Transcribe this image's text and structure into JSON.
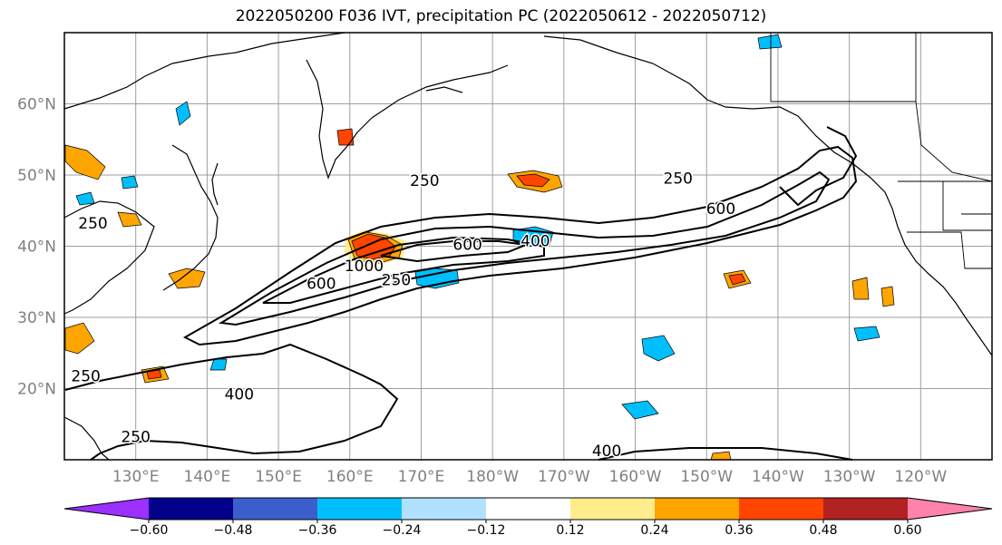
{
  "title": "2022050200 F036 IVT, precipitation PC (2022050612 - 2022050712)",
  "map": {
    "lon_range": [
      120,
      250
    ],
    "lat_range": [
      10,
      70
    ],
    "lon_ticks": [
      "130°E",
      "140°E",
      "150°E",
      "160°E",
      "170°E",
      "180°W",
      "170°W",
      "160°W",
      "150°W",
      "140°W",
      "130°W",
      "120°W"
    ],
    "lat_ticks": [
      "20°N",
      "30°N",
      "40°N",
      "50°N",
      "60°N"
    ],
    "contour_labels": [
      {
        "text": "250",
        "lon": 170.5,
        "lat": 48.5
      },
      {
        "text": "600",
        "lon": 176.5,
        "lat": 39.5
      },
      {
        "text": "1000",
        "lon": 162,
        "lat": 36.5
      },
      {
        "text": "600",
        "lon": 156,
        "lat": 34.0
      },
      {
        "text": "250",
        "lon": 166.5,
        "lat": 34.5
      },
      {
        "text": "400",
        "lon": 186,
        "lat": 40.0
      },
      {
        "text": "600",
        "lon": 212,
        "lat": 44.5
      },
      {
        "text": "250",
        "lon": 206,
        "lat": 48.8
      },
      {
        "text": "250",
        "lon": 124,
        "lat": 42.5
      },
      {
        "text": "250",
        "lon": 123,
        "lat": 21.0
      },
      {
        "text": "400",
        "lon": 144.5,
        "lat": 18.5
      },
      {
        "text": "400",
        "lon": 196,
        "lat": 10.5
      },
      {
        "text": "250",
        "lon": 130,
        "lat": 12.5
      }
    ]
  },
  "colorbar": {
    "colors": [
      "#9b30ff",
      "#00008b",
      "#3a5fcd",
      "#00bfff",
      "#b0e2ff",
      "#ffffff",
      "#ffec8b",
      "#ffa500",
      "#ff4500",
      "#b22222",
      "#ff82ab"
    ],
    "tick_labels": [
      "−0.60",
      "−0.48",
      "−0.36",
      "−0.24",
      "−0.12",
      "0.12",
      "0.24",
      "0.36",
      "0.48",
      "0.60"
    ]
  }
}
